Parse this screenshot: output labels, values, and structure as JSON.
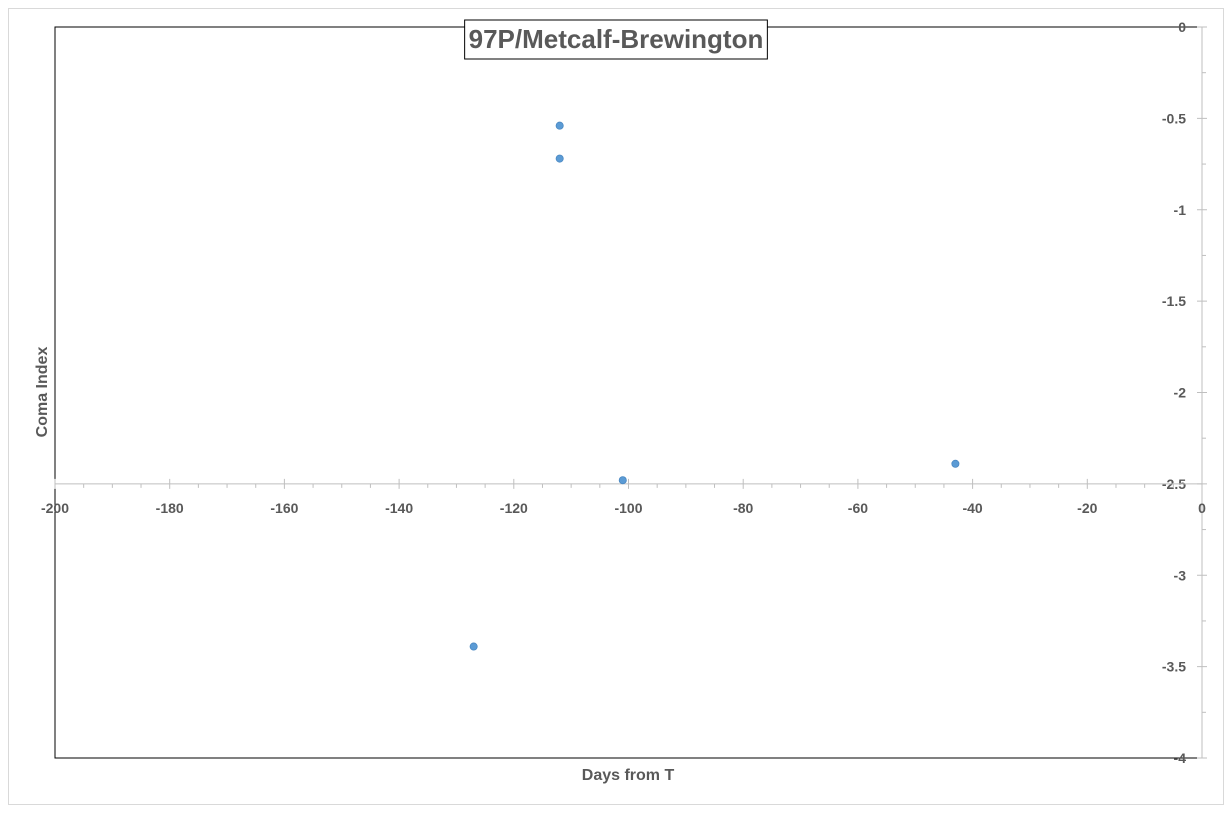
{
  "chart_data": {
    "type": "scatter",
    "title": "97P/Metcalf-Brewington",
    "xlabel": "Days from T",
    "ylabel": "Coma Index",
    "xlim": [
      -200,
      0
    ],
    "ylim": [
      -4,
      0
    ],
    "x_ticks": [
      "-200",
      "-180",
      "-160",
      "-140",
      "-120",
      "-100",
      "-80",
      "-60",
      "-40",
      "-20",
      "0"
    ],
    "y_ticks": [
      "0",
      "-0.5",
      "-1",
      "-1.5",
      "-2",
      "-2.5",
      "-3",
      "-3.5",
      "-4"
    ],
    "x_axis_crosses_y": -2.5,
    "y_axis_side": "right",
    "grid": false,
    "legend": "none",
    "marker_color": "#5b9bd5",
    "series": [
      {
        "points": [
          {
            "x": -112,
            "y": -0.54
          },
          {
            "x": -112,
            "y": -0.72
          },
          {
            "x": -101,
            "y": -2.48
          },
          {
            "x": -43,
            "y": -2.39
          },
          {
            "x": -127,
            "y": -3.39
          }
        ]
      }
    ]
  }
}
